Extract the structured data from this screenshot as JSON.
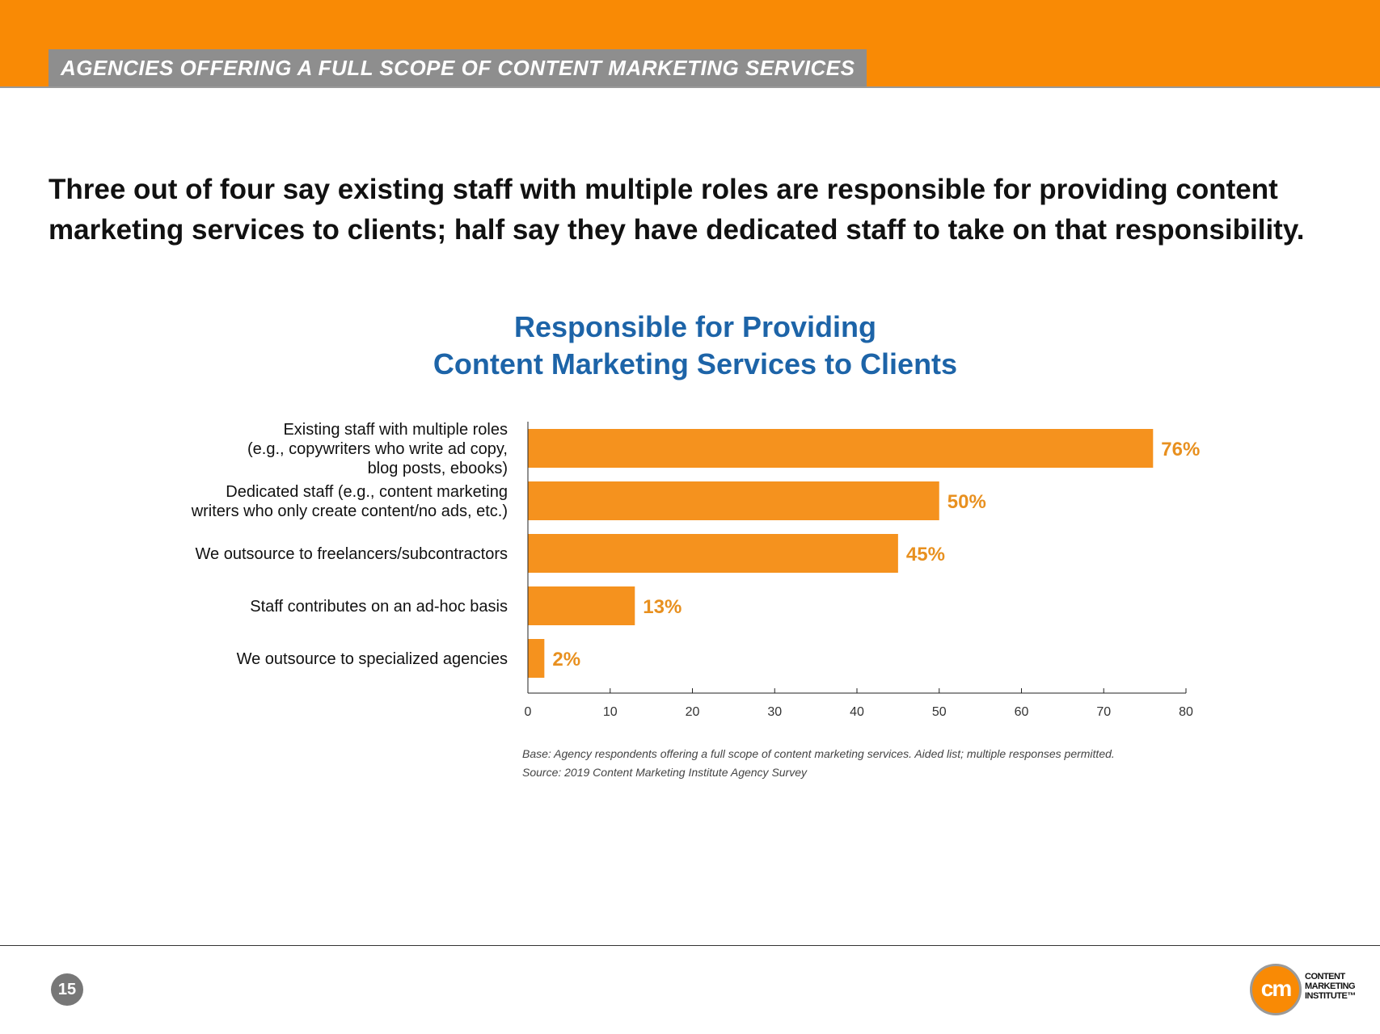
{
  "header": {
    "section_title": "AGENCIES OFFERING A FULL SCOPE OF CONTENT MARKETING SERVICES",
    "band_color": "#f98a05"
  },
  "headline": "Three out of four say existing staff with multiple roles are responsible for providing content marketing services to clients; half say they have dedicated staff to take on that responsibility.",
  "chart_data": {
    "type": "bar",
    "orientation": "horizontal",
    "title_lines": [
      "Responsible for Providing",
      "Content Marketing Services to Clients"
    ],
    "categories": [
      [
        "Existing staff with multiple roles",
        "(e.g., copywriters who write ad copy,",
        "blog posts, ebooks)"
      ],
      [
        "Dedicated staff (e.g., content marketing",
        "writers who only create content/no ads, etc.)"
      ],
      [
        "We outsource to freelancers/subcontractors"
      ],
      [
        "Staff contributes on an ad-hoc basis"
      ],
      [
        "We outsource to specialized agencies"
      ]
    ],
    "values": [
      76,
      50,
      45,
      13,
      2
    ],
    "value_labels": [
      "76%",
      "50%",
      "45%",
      "13%",
      "2%"
    ],
    "xlim": [
      0,
      80
    ],
    "xticks": [
      0,
      10,
      20,
      30,
      40,
      50,
      60,
      70,
      80
    ],
    "xlabel": "",
    "ylabel": "",
    "grid": false,
    "bar_color": "#f5921e",
    "label_color": "#e8901f"
  },
  "notes": {
    "base": "Base: Agency respondents offering a full scope of content marketing services. Aided list; multiple responses permitted.",
    "source": "Source: 2019 Content Marketing Institute Agency Survey"
  },
  "footer": {
    "page_number": "15",
    "logo_mark": "cm",
    "logo_lines": [
      "CONTENT",
      "MARKETING",
      "INSTITUTE™"
    ]
  }
}
